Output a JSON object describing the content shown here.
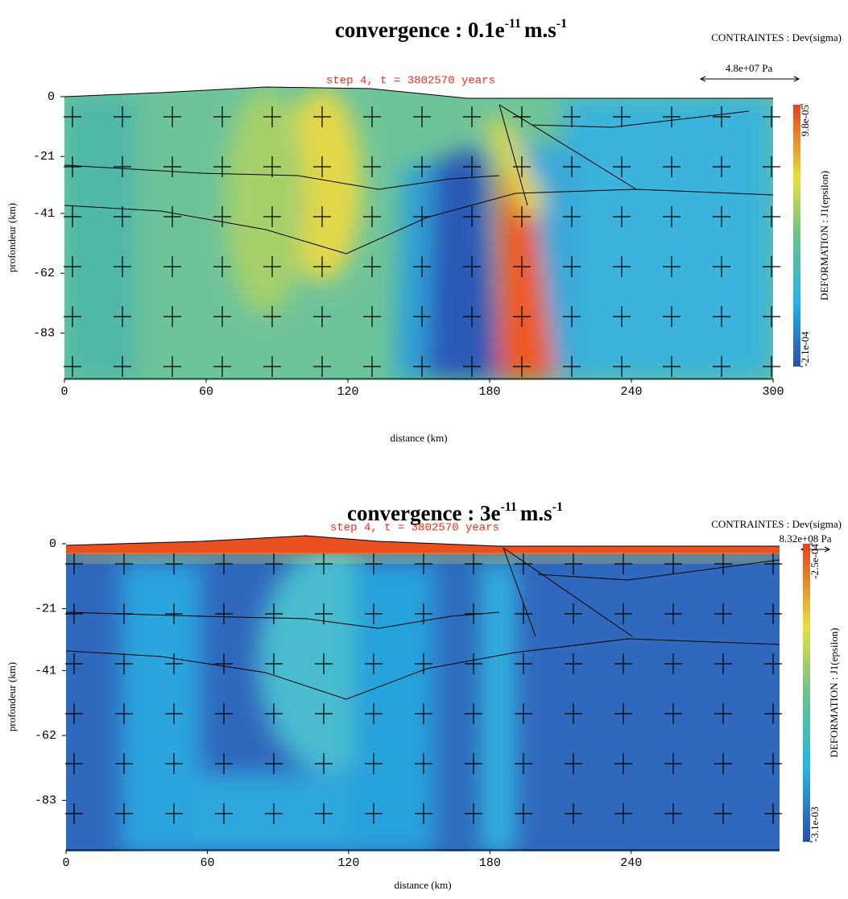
{
  "chart_data": [
    {
      "type": "heatmap",
      "title_parts": [
        "convergence : 0.1e",
        "-11",
        "m.s",
        "-1"
      ],
      "legend_title": "CONTRAINTES : Dev(sigma)",
      "scale_label": "4.8e+07 Pa",
      "annotation": "step 4, t = 3802570 years",
      "x_label": "distance (km)",
      "y_label": "profondeur (km)",
      "colorbar_label": "DEFORMATION : J1(epsilon)",
      "xlim": [
        0,
        300
      ],
      "ylim": [
        -99,
        0
      ],
      "xticks": [
        0,
        60,
        120,
        180,
        240,
        300
      ],
      "yticks": [
        0,
        -21,
        -41,
        -62,
        -83
      ],
      "clim": [
        -0.00021,
        9.8e-05
      ],
      "cticks": [
        {
          "value": 9.8e-05,
          "label": "9.8e-05"
        },
        {
          "value": -0.00021,
          "label": "-2.1e-04"
        }
      ]
    },
    {
      "type": "heatmap",
      "title_parts": [
        "convergence : 3e",
        "-11",
        "m.s",
        "-1"
      ],
      "legend_title": "CONTRAINTES : Dev(sigma)",
      "scale_label": "8.32e+08 Pa",
      "annotation": "step 4, t = 3802570 years",
      "x_label": "distance (km)",
      "y_label": "profondeur (km)",
      "colorbar_label": "DEFORMATION : J1(epsilon)",
      "xlim": [
        0,
        303
      ],
      "ylim": [
        -99,
        0
      ],
      "xticks": [
        0,
        60,
        120,
        180,
        240
      ],
      "yticks": [
        0,
        -21,
        -41,
        -62,
        -83
      ],
      "clim": [
        -0.0031,
        -0.00025
      ],
      "cticks": [
        {
          "value": -0.00025,
          "label": "-2.5e-04"
        },
        {
          "value": -0.0031,
          "label": "-3.1e-03"
        }
      ]
    }
  ]
}
